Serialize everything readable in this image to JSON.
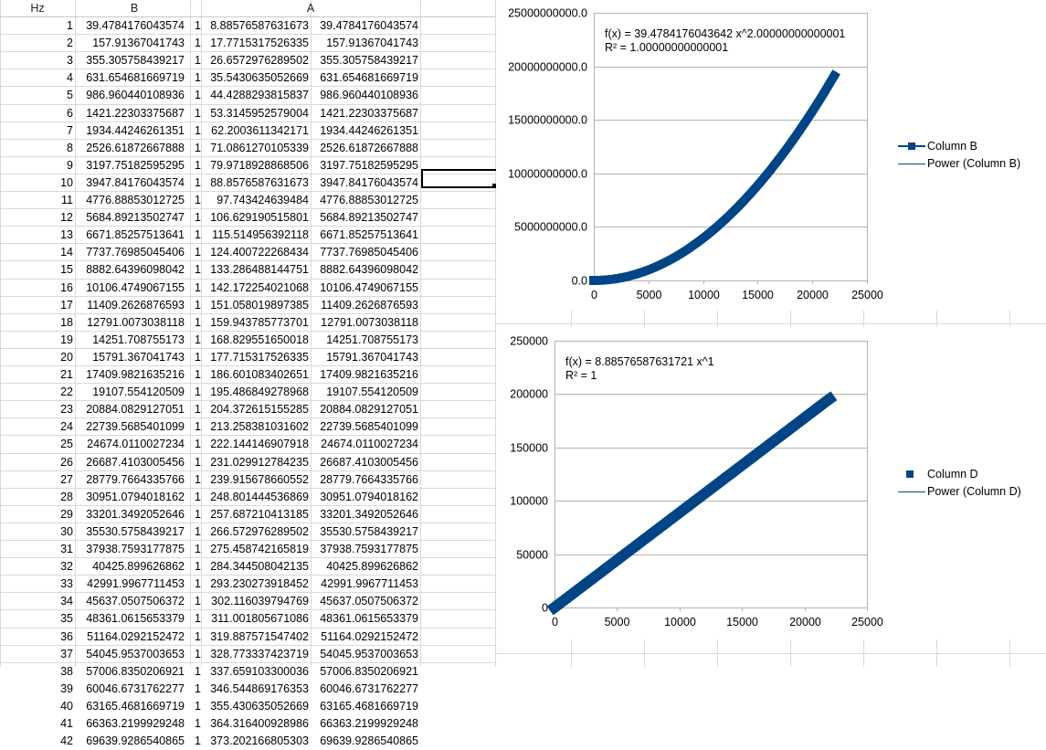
{
  "spreadsheet": {
    "headers": [
      "Hz",
      "B",
      "A"
    ],
    "rows": [
      [
        1,
        "39.4784176043574",
        1,
        "8.88576587631673",
        "39.4784176043574"
      ],
      [
        2,
        "157.91367041743",
        1,
        "17.7715317526335",
        "157.91367041743"
      ],
      [
        3,
        "355.305758439217",
        1,
        "26.6572976289502",
        "355.305758439217"
      ],
      [
        4,
        "631.654681669719",
        1,
        "35.5430635052669",
        "631.654681669719"
      ],
      [
        5,
        "986.960440108936",
        1,
        "44.4288293815837",
        "986.960440108936"
      ],
      [
        6,
        "1421.22303375687",
        1,
        "53.3145952579004",
        "1421.22303375687"
      ],
      [
        7,
        "1934.44246261351",
        1,
        "62.2003611342171",
        "1934.44246261351"
      ],
      [
        8,
        "2526.61872667888",
        1,
        "71.0861270105339",
        "2526.61872667888"
      ],
      [
        9,
        "3197.75182595295",
        1,
        "79.9718928868506",
        "3197.75182595295"
      ],
      [
        10,
        "3947.84176043574",
        1,
        "88.8576587631673",
        "3947.84176043574"
      ],
      [
        11,
        "4776.88853012725",
        1,
        "97.743424639484",
        "4776.88853012725"
      ],
      [
        12,
        "5684.89213502747",
        1,
        "106.629190515801",
        "5684.89213502747"
      ],
      [
        13,
        "6671.85257513641",
        1,
        "115.514956392118",
        "6671.85257513641"
      ],
      [
        14,
        "7737.76985045406",
        1,
        "124.400722268434",
        "7737.76985045406"
      ],
      [
        15,
        "8882.64396098042",
        1,
        "133.286488144751",
        "8882.64396098042"
      ],
      [
        16,
        "10106.4749067155",
        1,
        "142.172254021068",
        "10106.4749067155"
      ],
      [
        17,
        "11409.2626876593",
        1,
        "151.058019897385",
        "11409.2626876593"
      ],
      [
        18,
        "12791.0073038118",
        1,
        "159.943785773701",
        "12791.0073038118"
      ],
      [
        19,
        "14251.708755173",
        1,
        "168.829551650018",
        "14251.708755173"
      ],
      [
        20,
        "15791.367041743",
        1,
        "177.715317526335",
        "15791.367041743"
      ],
      [
        21,
        "17409.9821635216",
        1,
        "186.601083402651",
        "17409.9821635216"
      ],
      [
        22,
        "19107.554120509",
        1,
        "195.486849278968",
        "19107.554120509"
      ],
      [
        23,
        "20884.0829127051",
        1,
        "204.372615155285",
        "20884.0829127051"
      ],
      [
        24,
        "22739.5685401099",
        1,
        "213.258381031602",
        "22739.5685401099"
      ],
      [
        25,
        "24674.0110027234",
        1,
        "222.144146907918",
        "24674.0110027234"
      ],
      [
        26,
        "26687.4103005456",
        1,
        "231.029912784235",
        "26687.4103005456"
      ],
      [
        27,
        "28779.7664335766",
        1,
        "239.915678660552",
        "28779.7664335766"
      ],
      [
        28,
        "30951.0794018162",
        1,
        "248.801444536869",
        "30951.0794018162"
      ],
      [
        29,
        "33201.3492052646",
        1,
        "257.687210413185",
        "33201.3492052646"
      ],
      [
        30,
        "35530.5758439217",
        1,
        "266.572976289502",
        "35530.5758439217"
      ],
      [
        31,
        "37938.7593177875",
        1,
        "275.458742165819",
        "37938.7593177875"
      ],
      [
        32,
        "40425.899626862",
        1,
        "284.344508042135",
        "40425.899626862"
      ],
      [
        33,
        "42991.9967711453",
        1,
        "293.230273918452",
        "42991.9967711453"
      ],
      [
        34,
        "45637.0507506372",
        1,
        "302.116039794769",
        "45637.0507506372"
      ],
      [
        35,
        "48361.0615653379",
        1,
        "311.001805671086",
        "48361.0615653379"
      ],
      [
        36,
        "51164.0292152472",
        1,
        "319.887571547402",
        "51164.0292152472"
      ],
      [
        37,
        "54045.9537003653",
        1,
        "328.773337423719",
        "54045.9537003653"
      ],
      [
        38,
        "57006.8350206921",
        1,
        "337.659103300036",
        "57006.8350206921"
      ],
      [
        39,
        "60046.6731762277",
        1,
        "346.544869176353",
        "60046.6731762277"
      ],
      [
        40,
        "63165.4681669719",
        1,
        "355.430635052669",
        "63165.4681669719"
      ],
      [
        41,
        "66363.2199929248",
        1,
        "364.316400928986",
        "66363.2199929248"
      ],
      [
        42,
        "69639.9286540865",
        1,
        "373.202166805303",
        "69639.9286540865"
      ]
    ]
  },
  "chart_data": [
    {
      "type": "scatter",
      "equation": "f(x) = 39.4784176043642 x^2.00000000000001",
      "r_squared": "R² = 1.00000000000001",
      "x": {
        "min": 0,
        "max": 25000,
        "ticks": [
          "0",
          "5000",
          "10000",
          "15000",
          "20000",
          "25000"
        ]
      },
      "y": {
        "min": 0,
        "max": 25000000000,
        "ticks": [
          "0.0",
          "5000000000.0",
          "10000000000.0",
          "15000000000.0",
          "20000000000.0",
          "25000000000.0"
        ]
      },
      "series": [
        {
          "name": "Column B",
          "x_range": [
            1,
            22000
          ],
          "coefficient": 39.4784176043574,
          "exponent": 2
        }
      ],
      "trendline": {
        "name": "Power (Column B)",
        "coefficient": 39.4784176043642,
        "exponent": 2
      },
      "legend": [
        "Column B",
        "Power (Column B)"
      ],
      "legend_position": "right",
      "grid": "horizontal",
      "color": "#004586"
    },
    {
      "type": "scatter",
      "equation": "f(x) = 8.88576587631721 x^1",
      "r_squared": "R² = 1",
      "x": {
        "min": 0,
        "max": 25000,
        "ticks": [
          "0",
          "5000",
          "10000",
          "15000",
          "20000",
          "25000"
        ]
      },
      "y": {
        "min": 0,
        "max": 250000,
        "ticks": [
          "0",
          "50000",
          "100000",
          "150000",
          "200000",
          "250000"
        ]
      },
      "series": [
        {
          "name": "Column D",
          "x_range": [
            1,
            22000
          ],
          "coefficient": 8.88576587631673,
          "exponent": 1
        }
      ],
      "trendline": {
        "name": "Power (Column D)",
        "coefficient": 8.88576587631721,
        "exponent": 1
      },
      "legend": [
        "Column D",
        "Power (Column D)"
      ],
      "legend_position": "right",
      "grid": "horizontal",
      "color": "#004586"
    }
  ]
}
